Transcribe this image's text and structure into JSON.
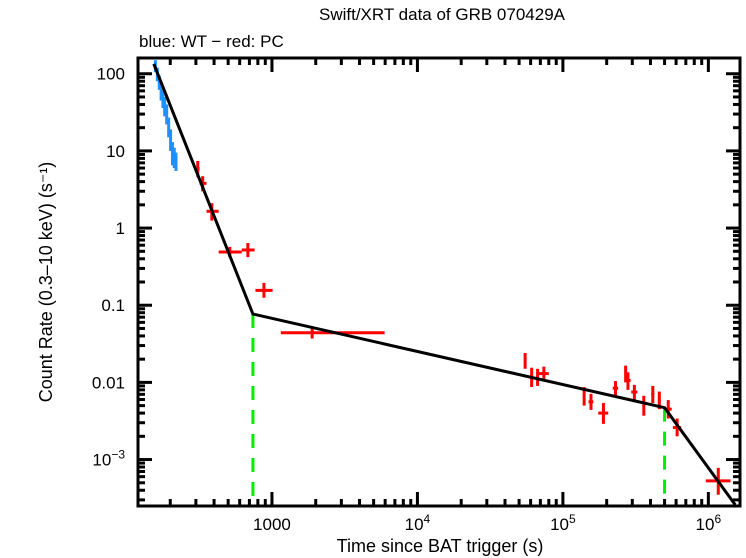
{
  "chart_data": {
    "type": "scatter",
    "title": "Swift/XRT data of GRB 070429A",
    "subtitle": "blue: WT − red: PC",
    "xlabel": "Time since BAT trigger (s)",
    "ylabel": "Count Rate (0.3–10 keV) (s⁻¹)",
    "xscale": "log",
    "yscale": "log",
    "xlim": [
      120,
      1650000
    ],
    "ylim": [
      0.00025,
      160
    ],
    "x_ticks": [
      {
        "value": 1000,
        "label": "1000",
        "sup": ""
      },
      {
        "value": 10000,
        "label": "10",
        "sup": "4"
      },
      {
        "value": 100000,
        "label": "10",
        "sup": "5"
      },
      {
        "value": 1000000,
        "label": "10",
        "sup": "6"
      }
    ],
    "y_ticks": [
      {
        "value": 100,
        "label": "100",
        "sup": ""
      },
      {
        "value": 10,
        "label": "10",
        "sup": ""
      },
      {
        "value": 1,
        "label": "1",
        "sup": ""
      },
      {
        "value": 0.1,
        "label": "0.1",
        "sup": ""
      },
      {
        "value": 0.01,
        "label": "0.01",
        "sup": ""
      },
      {
        "value": 0.001,
        "label": "10",
        "sup": "−3"
      }
    ],
    "grid": false,
    "colors": {
      "wt": "#1e90ff",
      "pc": "#ff0000",
      "model": "#000000",
      "breaks": "#00ee00"
    },
    "series": [
      {
        "name": "WT",
        "color": "#1e90ff",
        "points": [
          {
            "t": 158,
            "rate": 125,
            "tlo": 155,
            "thi": 161,
            "rlo": 105,
            "rhi": 150
          },
          {
            "t": 163,
            "rate": 100,
            "tlo": 161,
            "thi": 166,
            "rlo": 80,
            "rhi": 120
          },
          {
            "t": 168,
            "rate": 78,
            "tlo": 166,
            "thi": 171,
            "rlo": 62,
            "rhi": 95
          },
          {
            "t": 173,
            "rate": 58,
            "tlo": 171,
            "thi": 176,
            "rlo": 45,
            "rhi": 72
          },
          {
            "t": 178,
            "rate": 48,
            "tlo": 176,
            "thi": 181,
            "rlo": 36,
            "rhi": 60
          },
          {
            "t": 183,
            "rate": 40,
            "tlo": 181,
            "thi": 186,
            "rlo": 28,
            "rhi": 50
          },
          {
            "t": 189,
            "rate": 30,
            "tlo": 186,
            "thi": 192,
            "rlo": 22,
            "rhi": 40
          },
          {
            "t": 195,
            "rate": 20,
            "tlo": 192,
            "thi": 198,
            "rlo": 15,
            "rhi": 27
          },
          {
            "t": 201,
            "rate": 14,
            "tlo": 198,
            "thi": 204,
            "rlo": 10,
            "rhi": 19
          },
          {
            "t": 207,
            "rate": 10,
            "tlo": 204,
            "thi": 210,
            "rlo": 6.5,
            "rhi": 13
          },
          {
            "t": 213,
            "rate": 8.5,
            "tlo": 210,
            "thi": 216,
            "rlo": 6.0,
            "rhi": 11
          },
          {
            "t": 219,
            "rate": 7.5,
            "tlo": 216,
            "thi": 222,
            "rlo": 5.5,
            "rhi": 9.5
          }
        ]
      },
      {
        "name": "PC",
        "color": "#ff0000",
        "points": [
          {
            "t": 309,
            "rate": 5.9,
            "tlo": 300,
            "thi": 318,
            "rlo": 4.6,
            "rhi": 7.4
          },
          {
            "t": 334,
            "rate": 3.8,
            "tlo": 318,
            "thi": 355,
            "rlo": 3.0,
            "rhi": 4.7
          },
          {
            "t": 386,
            "rate": 1.65,
            "tlo": 355,
            "thi": 430,
            "rlo": 1.25,
            "rhi": 2.1
          },
          {
            "t": 513,
            "rate": 0.49,
            "tlo": 430,
            "thi": 620,
            "rlo": 0.42,
            "rhi": 0.57
          },
          {
            "t": 683,
            "rate": 0.52,
            "tlo": 620,
            "thi": 760,
            "rlo": 0.42,
            "rhi": 0.64
          },
          {
            "t": 881,
            "rate": 0.156,
            "tlo": 770,
            "thi": 1010,
            "rlo": 0.125,
            "rhi": 0.195
          },
          {
            "t": 1890,
            "rate": 0.044,
            "tlo": 1150,
            "thi": 5950,
            "rlo": 0.037,
            "rhi": 0.052
          },
          {
            "t": 55000,
            "rate": 0.019,
            "tlo": 54000,
            "thi": 56000,
            "rlo": 0.015,
            "rhi": 0.024
          },
          {
            "t": 61000,
            "rate": 0.0116,
            "tlo": 60000,
            "thi": 62000,
            "rlo": 0.0087,
            "rhi": 0.0155
          },
          {
            "t": 67000,
            "rate": 0.0116,
            "tlo": 65500,
            "thi": 68500,
            "rlo": 0.009,
            "rhi": 0.015
          },
          {
            "t": 74000,
            "rate": 0.013,
            "tlo": 68500,
            "thi": 80000,
            "rlo": 0.0105,
            "rhi": 0.016
          },
          {
            "t": 140000,
            "rate": 0.0066,
            "tlo": 137000,
            "thi": 143000,
            "rlo": 0.005,
            "rhi": 0.0087
          },
          {
            "t": 156000,
            "rate": 0.0056,
            "tlo": 150000,
            "thi": 162000,
            "rlo": 0.0044,
            "rhi": 0.0071
          },
          {
            "t": 190000,
            "rate": 0.004,
            "tlo": 175000,
            "thi": 205000,
            "rlo": 0.0029,
            "rhi": 0.0054
          },
          {
            "t": 230000,
            "rate": 0.0084,
            "tlo": 220000,
            "thi": 240000,
            "rlo": 0.0068,
            "rhi": 0.0104
          },
          {
            "t": 270000,
            "rate": 0.013,
            "tlo": 266000,
            "thi": 274000,
            "rlo": 0.01,
            "rhi": 0.0165
          },
          {
            "t": 280000,
            "rate": 0.0106,
            "tlo": 274000,
            "thi": 292000,
            "rlo": 0.008,
            "rhi": 0.0135
          },
          {
            "t": 310000,
            "rate": 0.0075,
            "tlo": 295000,
            "thi": 325000,
            "rlo": 0.006,
            "rhi": 0.0093
          },
          {
            "t": 360000,
            "rate": 0.005,
            "tlo": 354000,
            "thi": 366000,
            "rlo": 0.0037,
            "rhi": 0.0067
          },
          {
            "t": 415000,
            "rate": 0.007,
            "tlo": 405000,
            "thi": 425000,
            "rlo": 0.0054,
            "rhi": 0.009
          },
          {
            "t": 460000,
            "rate": 0.0059,
            "tlo": 450000,
            "thi": 470000,
            "rlo": 0.0045,
            "rhi": 0.0076
          },
          {
            "t": 530000,
            "rate": 0.0045,
            "tlo": 505000,
            "thi": 560000,
            "rlo": 0.0034,
            "rhi": 0.0059
          },
          {
            "t": 610000,
            "rate": 0.0026,
            "tlo": 570000,
            "thi": 650000,
            "rlo": 0.002,
            "rhi": 0.0034
          },
          {
            "t": 1170000,
            "rate": 0.00053,
            "tlo": 960000,
            "thi": 1420000,
            "rlo": 0.00035,
            "rhi": 0.00078
          }
        ]
      }
    ],
    "model": {
      "name": "broken power law fit",
      "color": "#000000",
      "points": [
        {
          "t": 154,
          "rate": 134
        },
        {
          "t": 740,
          "rate": 0.077
        },
        {
          "t": 500000,
          "rate": 0.0047
        },
        {
          "t": 1530000,
          "rate": 0.00026
        }
      ]
    },
    "break_markers": [
      {
        "t": 740,
        "rate": 0.077
      },
      {
        "t": 500000,
        "rate": 0.0047
      }
    ]
  }
}
